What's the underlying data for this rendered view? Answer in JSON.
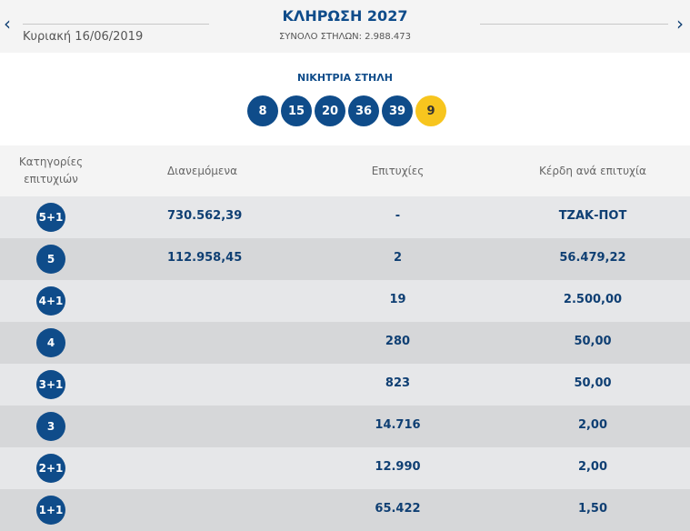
{
  "header": {
    "title": "ΚΛΗΡΩΣΗ 2027",
    "date": "Κυριακή 16/06/2019",
    "total": "ΣΥΝΟΛΟ ΣΤΗΛΩΝ: 2.988.473",
    "prev": "‹",
    "next": "›"
  },
  "winning": {
    "label": "ΝΙΚΗΤΡΙΑ ΣΤΗΛΗ",
    "numbers": [
      "8",
      "15",
      "20",
      "36",
      "39"
    ],
    "bonus": "9",
    "colors": {
      "main": "#0f4c8a",
      "bonus": "#f7c51e"
    }
  },
  "table": {
    "headers": [
      "Κατηγορίες επιτυχιών",
      "Διανεμόμενα",
      "Επιτυχίες",
      "Κέρδη ανά επιτυχία"
    ],
    "rows": [
      {
        "cat": "5+1",
        "dist": "730.562,39",
        "wins": "-",
        "prize": "ΤΖΑΚ-ΠΟΤ"
      },
      {
        "cat": "5",
        "dist": "112.958,45",
        "wins": "2",
        "prize": "56.479,22"
      },
      {
        "cat": "4+1",
        "dist": "",
        "wins": "19",
        "prize": "2.500,00"
      },
      {
        "cat": "4",
        "dist": "",
        "wins": "280",
        "prize": "50,00"
      },
      {
        "cat": "3+1",
        "dist": "",
        "wins": "823",
        "prize": "50,00"
      },
      {
        "cat": "3",
        "dist": "",
        "wins": "14.716",
        "prize": "2,00"
      },
      {
        "cat": "2+1",
        "dist": "",
        "wins": "12.990",
        "prize": "2,00"
      },
      {
        "cat": "1+1",
        "dist": "",
        "wins": "65.422",
        "prize": "1,50"
      }
    ]
  }
}
